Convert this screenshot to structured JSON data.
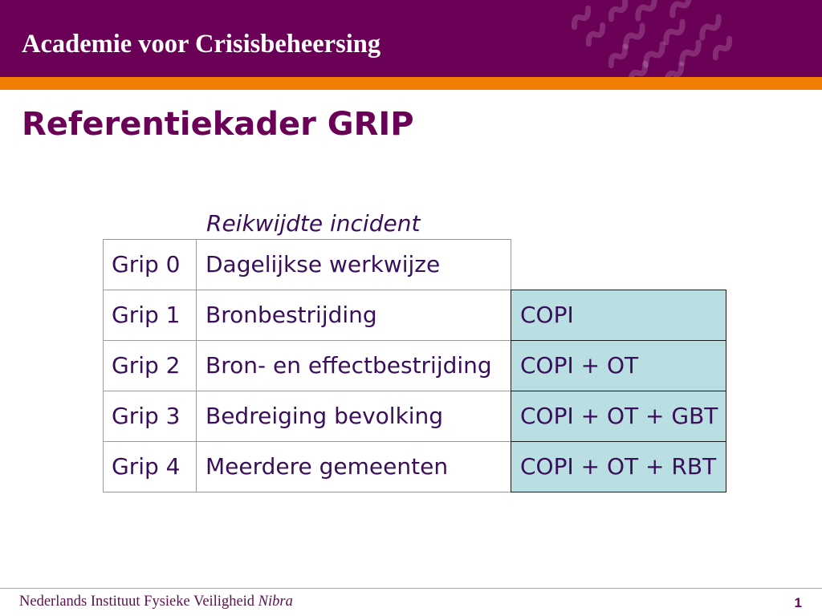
{
  "header": {
    "brand": "Academie voor Crisisbeheersing"
  },
  "title": "Referentiekader GRIP",
  "table": {
    "column_header": "Reikwijdte incident",
    "rows": [
      {
        "level": "Grip 0",
        "scope": "Dagelijkse werkwijze"
      },
      {
        "level": "Grip 1",
        "scope": "Bronbestrijding",
        "teams": "COPI"
      },
      {
        "level": "Grip 2",
        "scope": "Bron- en effectbestrijding",
        "teams": "COPI + OT"
      },
      {
        "level": "Grip 3",
        "scope": "Bedreiging bevolking",
        "teams": "COPI + OT + GBT"
      },
      {
        "level": "Grip 4",
        "scope": "Meerdere gemeenten",
        "teams": "COPI + OT + RBT"
      }
    ]
  },
  "footer": {
    "organization": "Nederlands Instituut Fysieke Veiligheid",
    "organization_short": "Nibra",
    "page_number": "1"
  },
  "colors": {
    "brand_purple": "#6b0057",
    "accent_orange": "#f07d00",
    "teams_cell_fill": "#b9dfe2",
    "text_dark": "#3a0e5a"
  }
}
